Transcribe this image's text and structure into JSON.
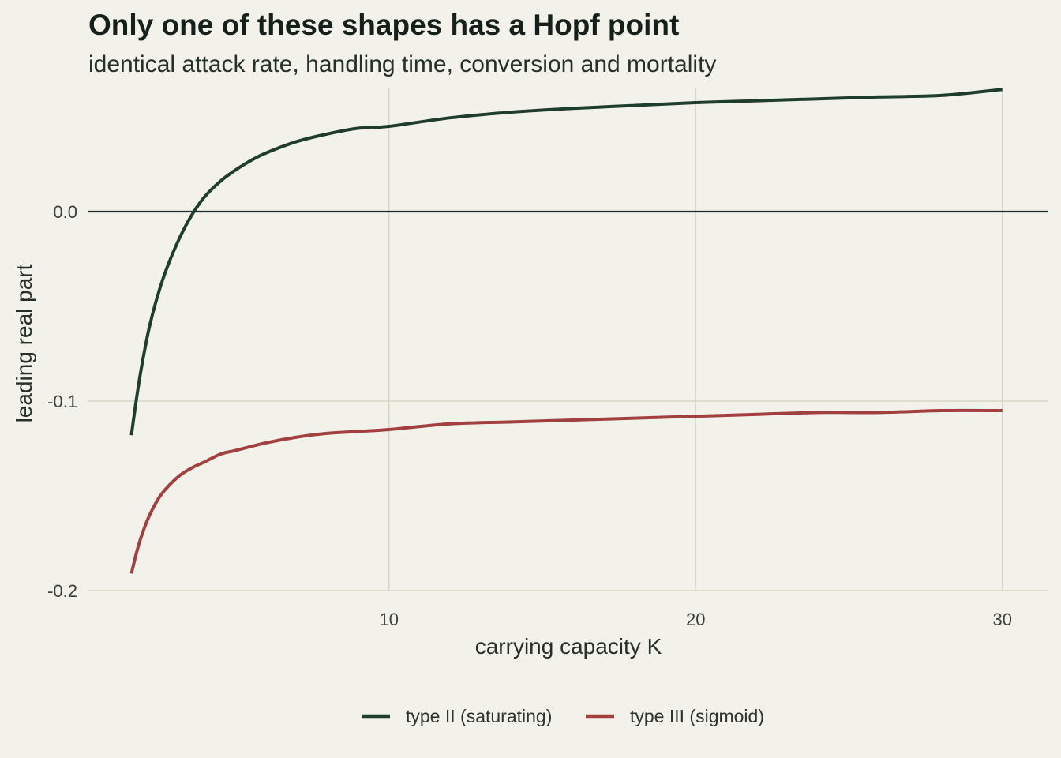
{
  "colors": {
    "background": "#f2f1ea",
    "grid": "#d9d8c8",
    "zero_line": "#1e2a24",
    "type2": "#1f3d2d",
    "type3": "#a23f3f"
  },
  "chart_data": {
    "type": "line",
    "title": "Only one of these shapes has a Hopf point",
    "subtitle": "identical attack rate, handling time, conversion and mortality",
    "xlabel": "carrying capacity K",
    "ylabel": "leading real part",
    "xlim": [
      0.2,
      31.5
    ],
    "ylim": [
      -0.2,
      0.065
    ],
    "x_ticks": [
      10,
      20,
      30
    ],
    "x_tick_labels": [
      "10",
      "20",
      "30"
    ],
    "y_ticks": [
      -0.2,
      -0.1,
      0.0
    ],
    "y_tick_labels": [
      "-0.2",
      "-0.1",
      "0.0"
    ],
    "reference_line_y": 0.0,
    "grid": true,
    "legend_position": "bottom",
    "series": [
      {
        "name": "type II (saturating)",
        "color": "#1f3d2d",
        "x": [
          1.6,
          1.8,
          2.0,
          2.2,
          2.5,
          2.8,
          3.2,
          3.6,
          4.0,
          4.5,
          5.0,
          5.5,
          6.0,
          7.0,
          8.0,
          9.0,
          10.0,
          12.0,
          14.0,
          16.0,
          18.0,
          20.0,
          22.0,
          24.0,
          26.0,
          28.0,
          30.0
        ],
        "y": [
          -0.118,
          -0.095,
          -0.076,
          -0.06,
          -0.042,
          -0.028,
          -0.013,
          -0.001,
          0.008,
          0.016,
          0.022,
          0.027,
          0.031,
          0.037,
          0.041,
          0.044,
          0.045,
          0.0495,
          0.0525,
          0.0545,
          0.056,
          0.0575,
          0.0585,
          0.0595,
          0.0605,
          0.0613,
          0.0645
        ]
      },
      {
        "name": "type III (sigmoid)",
        "color": "#a23f3f",
        "x": [
          1.6,
          1.8,
          2.0,
          2.2,
          2.5,
          2.8,
          3.2,
          3.6,
          4.0,
          4.5,
          5.0,
          6.0,
          7.0,
          8.0,
          9.0,
          10.0,
          12.0,
          14.0,
          16.0,
          18.0,
          20.0,
          22.0,
          24.0,
          26.0,
          28.0,
          30.0
        ],
        "y": [
          -0.191,
          -0.178,
          -0.168,
          -0.16,
          -0.151,
          -0.145,
          -0.139,
          -0.135,
          -0.132,
          -0.128,
          -0.126,
          -0.122,
          -0.119,
          -0.117,
          -0.116,
          -0.115,
          -0.112,
          -0.111,
          -0.11,
          -0.109,
          -0.108,
          -0.107,
          -0.106,
          -0.106,
          -0.105,
          -0.105
        ]
      }
    ]
  }
}
